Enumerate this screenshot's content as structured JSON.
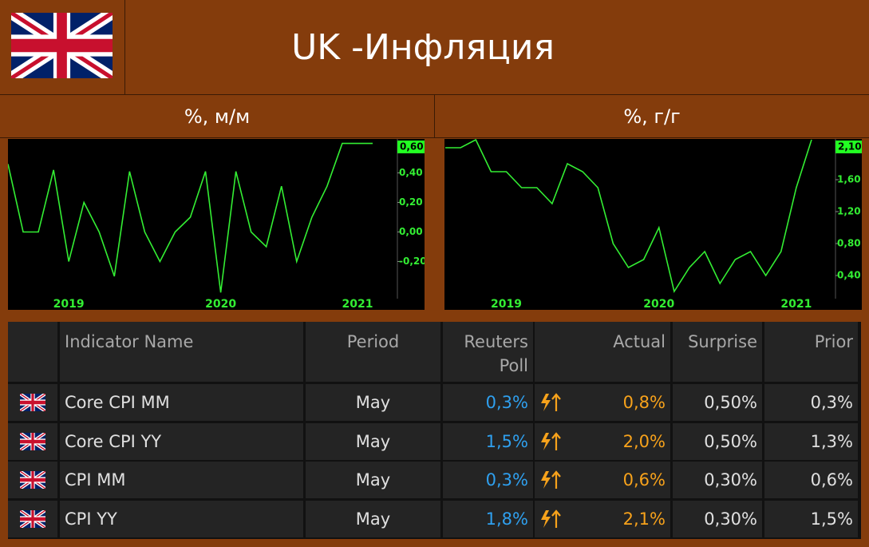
{
  "header": {
    "title": "UK -Инфляция"
  },
  "chart_data": [
    {
      "type": "line",
      "title": "%, м/м",
      "categories": [
        null,
        null,
        null,
        null,
        "2019",
        null,
        null,
        null,
        null,
        null,
        null,
        null,
        null,
        null,
        "2020",
        null,
        null,
        null,
        null,
        null,
        null,
        null,
        null,
        "2021",
        null
      ],
      "series": [
        {
          "color": "#33ee33",
          "values": [
            0.46,
            0.0,
            0.0,
            0.42,
            -0.2,
            0.2,
            0.0,
            -0.3,
            0.41,
            0.0,
            -0.2,
            0.0,
            0.1,
            0.41,
            -0.41,
            0.41,
            0.0,
            -0.1,
            0.31,
            -0.2,
            0.1,
            0.31,
            0.6,
            0.6,
            0.6
          ],
          "value_labels": [
            null,
            null,
            null,
            null,
            null,
            null,
            null,
            null,
            null,
            null,
            null,
            null,
            null,
            null,
            null,
            null,
            null,
            null,
            null,
            null,
            null,
            null,
            null,
            null,
            "0,60"
          ]
        }
      ],
      "ylim": [
        -0.43,
        0.63
      ],
      "yticks": [
        {
          "value": -0.2,
          "label": "-0,20"
        },
        {
          "value": 0,
          "label": "0,00"
        },
        {
          "value": 0.2,
          "label": "0,20"
        },
        {
          "value": 0.4,
          "label": "0,40"
        }
      ]
    },
    {
      "type": "line",
      "title": "%, г/г",
      "categories": [
        null,
        null,
        null,
        null,
        "2019",
        null,
        null,
        null,
        null,
        null,
        null,
        null,
        null,
        null,
        "2020",
        null,
        null,
        null,
        null,
        null,
        null,
        null,
        null,
        "2021",
        null
      ],
      "series": [
        {
          "color": "#33ee33",
          "values": [
            2.0,
            2.0,
            2.1,
            1.7,
            1.7,
            1.5,
            1.5,
            1.3,
            1.8,
            1.7,
            1.5,
            0.8,
            0.5,
            0.6,
            1.0,
            0.2,
            0.5,
            0.7,
            0.3,
            0.6,
            0.7,
            0.4,
            0.7,
            1.5,
            2.1
          ],
          "value_labels": [
            null,
            null,
            null,
            null,
            null,
            null,
            null,
            null,
            null,
            null,
            null,
            null,
            null,
            null,
            null,
            null,
            null,
            null,
            null,
            null,
            null,
            null,
            null,
            null,
            "2,10"
          ]
        }
      ],
      "ylim": [
        0.15,
        2.11
      ],
      "yticks": [
        {
          "value": 0.4,
          "label": "0,40"
        },
        {
          "value": 0.8,
          "label": "0,80"
        },
        {
          "value": 1.2,
          "label": "1,20"
        },
        {
          "value": 1.6,
          "label": "1,60"
        }
      ]
    }
  ],
  "table": {
    "columns": [
      "Indicator Name",
      "Period",
      "Reuters Poll",
      "Actual",
      "Surprise",
      "Prior"
    ],
    "rows": [
      [
        "Core CPI MM",
        "May",
        "0,3%",
        "0,8%",
        "0,50%",
        "0,3%"
      ],
      [
        "Core CPI YY",
        "May",
        "1,5%",
        "2,0%",
        "0,50%",
        "1,3%"
      ],
      [
        "CPI MM",
        "May",
        "0,3%",
        "0,6%",
        "0,30%",
        "0,6%"
      ],
      [
        "CPI YY",
        "May",
        "1,8%",
        "2,1%",
        "0,30%",
        "1,5%"
      ]
    ]
  }
}
